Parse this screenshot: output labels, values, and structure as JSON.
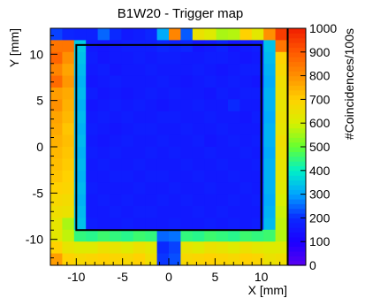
{
  "chart_data": {
    "type": "heatmap",
    "title": "B1W20 - Trigger map",
    "xlabel": "X [mm]",
    "ylabel": "Y [mm]",
    "zlabel": "#Coincidences/100s",
    "xlim": [
      -12.8,
      12.8
    ],
    "ylim": [
      -12.8,
      12.8
    ],
    "zlim": [
      0,
      1000
    ],
    "x_ticks": [
      -10,
      -5,
      0,
      5,
      10
    ],
    "y_ticks": [
      -10,
      -5,
      0,
      5,
      10
    ],
    "z_ticks": [
      0,
      100,
      200,
      300,
      400,
      500,
      600,
      700,
      800,
      900,
      1000
    ],
    "grid": false,
    "palette": [
      "#5a00f0",
      "#1b00ff",
      "#0a29ff",
      "#00a3ff",
      "#00f0c8",
      "#64ff32",
      "#d7f000",
      "#ffd200",
      "#ff9000",
      "#ff5a00",
      "#f01e00"
    ],
    "frame_color": "#000000",
    "bins_per_axis": 20,
    "bin_values": [
      [
        220,
        190,
        180,
        180,
        250,
        200,
        160,
        170,
        190,
        310,
        820,
        240,
        650,
        620,
        560,
        570,
        700,
        630,
        800,
        950
      ],
      [
        850,
        850,
        350,
        160,
        150,
        160,
        170,
        170,
        170,
        190,
        180,
        190,
        150,
        160,
        180,
        150,
        160,
        170,
        340,
        850
      ],
      [
        880,
        800,
        340,
        170,
        150,
        160,
        160,
        170,
        160,
        170,
        170,
        160,
        160,
        170,
        170,
        160,
        150,
        160,
        330,
        700
      ],
      [
        820,
        770,
        330,
        160,
        170,
        150,
        160,
        160,
        170,
        160,
        160,
        160,
        170,
        160,
        150,
        160,
        170,
        170,
        320,
        680
      ],
      [
        870,
        790,
        320,
        150,
        160,
        170,
        160,
        160,
        160,
        170,
        160,
        150,
        160,
        170,
        160,
        170,
        160,
        150,
        310,
        660
      ],
      [
        780,
        760,
        330,
        170,
        150,
        160,
        150,
        160,
        170,
        160,
        170,
        160,
        160,
        150,
        170,
        160,
        170,
        170,
        320,
        650
      ],
      [
        800,
        750,
        320,
        150,
        160,
        170,
        160,
        170,
        160,
        150,
        160,
        160,
        170,
        160,
        160,
        200,
        160,
        160,
        320,
        640
      ],
      [
        770,
        740,
        330,
        160,
        170,
        160,
        170,
        160,
        160,
        170,
        170,
        160,
        160,
        170,
        160,
        160,
        150,
        170,
        310,
        650
      ],
      [
        760,
        720,
        320,
        170,
        160,
        150,
        160,
        170,
        170,
        160,
        160,
        170,
        160,
        160,
        170,
        160,
        160,
        160,
        320,
        640
      ],
      [
        750,
        730,
        330,
        160,
        150,
        160,
        170,
        160,
        160,
        170,
        160,
        160,
        170,
        150,
        160,
        170,
        160,
        170,
        320,
        660
      ],
      [
        740,
        720,
        320,
        170,
        160,
        170,
        160,
        160,
        170,
        160,
        170,
        160,
        160,
        170,
        160,
        160,
        170,
        160,
        310,
        650
      ],
      [
        730,
        710,
        330,
        160,
        170,
        160,
        160,
        170,
        160,
        160,
        160,
        170,
        160,
        160,
        170,
        160,
        160,
        170,
        320,
        640
      ],
      [
        720,
        700,
        320,
        160,
        160,
        170,
        170,
        160,
        170,
        170,
        160,
        160,
        170,
        160,
        160,
        170,
        160,
        160,
        320,
        630
      ],
      [
        700,
        690,
        330,
        170,
        160,
        160,
        160,
        170,
        160,
        160,
        170,
        160,
        160,
        170,
        160,
        160,
        170,
        160,
        320,
        620
      ],
      [
        680,
        670,
        320,
        160,
        170,
        160,
        170,
        160,
        160,
        170,
        160,
        170,
        160,
        160,
        160,
        170,
        160,
        170,
        310,
        600
      ],
      [
        660,
        650,
        330,
        160,
        160,
        170,
        160,
        170,
        170,
        160,
        160,
        160,
        170,
        160,
        170,
        160,
        160,
        160,
        320,
        590
      ],
      [
        640,
        560,
        340,
        170,
        160,
        160,
        170,
        160,
        160,
        160,
        170,
        160,
        160,
        170,
        160,
        170,
        160,
        170,
        330,
        580
      ],
      [
        630,
        580,
        450,
        440,
        460,
        450,
        440,
        460,
        450,
        250,
        260,
        450,
        440,
        460,
        450,
        440,
        460,
        450,
        460,
        570
      ],
      [
        700,
        640,
        620,
        620,
        650,
        640,
        620,
        650,
        630,
        200,
        220,
        640,
        620,
        650,
        640,
        620,
        650,
        630,
        620,
        620
      ],
      [
        780,
        700,
        680,
        690,
        700,
        690,
        680,
        700,
        660,
        210,
        230,
        680,
        690,
        700,
        690,
        680,
        700,
        690,
        650,
        660
      ]
    ],
    "overlay": "detector-outline",
    "overlay_x": [
      -10,
      10
    ],
    "overlay_y": [
      -9,
      11
    ]
  }
}
